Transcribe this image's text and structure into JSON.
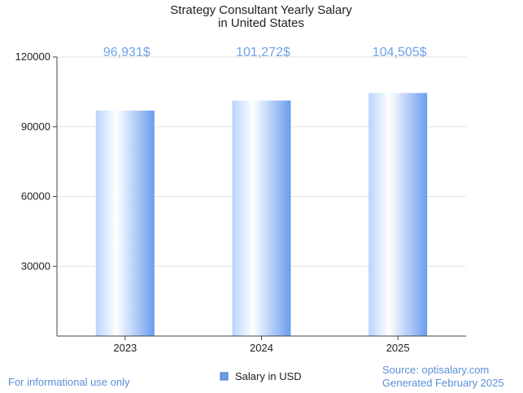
{
  "chart_data": {
    "type": "bar",
    "title": [
      "Strategy Consultant Yearly Salary",
      "in United States"
    ],
    "categories": [
      "2023",
      "2024",
      "2025"
    ],
    "series": [
      {
        "name": "Salary in USD",
        "values": [
          96931,
          101272,
          104505
        ]
      }
    ],
    "data_labels": [
      "96,931$",
      "101,272$",
      "104,505$"
    ],
    "ylim": [
      0,
      120000
    ],
    "yticks": [
      "30000",
      "60000",
      "90000",
      "120000"
    ],
    "ytick_values": [
      30000,
      60000,
      90000,
      120000
    ],
    "grid": true,
    "legend": "bottom-center",
    "colors": {
      "bar_light": "#ffffff",
      "bar_dark": "#6a9cf0",
      "label": "#6fa3e8",
      "grid": "#e3e3e3",
      "axis": "#444444"
    }
  },
  "footer": {
    "disclaimer": "For informational use only",
    "source": "Source: optisalary.com",
    "generated": "Generated February 2025"
  }
}
